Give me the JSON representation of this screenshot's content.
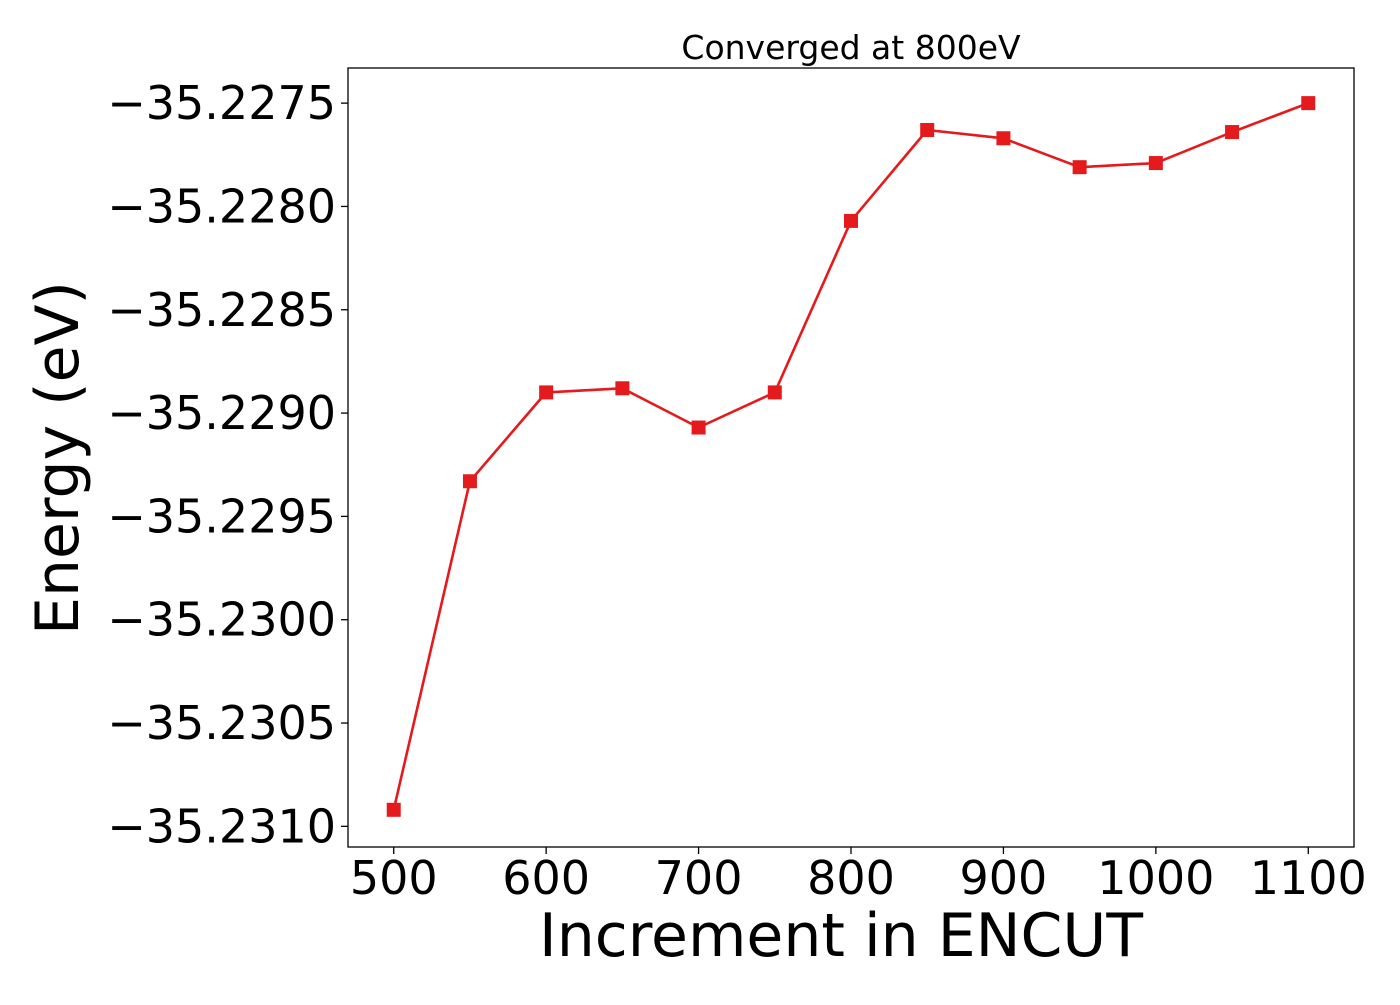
{
  "colors": {
    "series": "#e41a1c",
    "axis": "#000000",
    "background": "#ffffff"
  },
  "chart_data": {
    "type": "line",
    "title": "Converged at 800eV",
    "xlabel": "Increment in ENCUT",
    "ylabel": "Energy (eV)",
    "marker": "square",
    "grid": false,
    "x": [
      500,
      550,
      600,
      650,
      700,
      750,
      800,
      850,
      900,
      950,
      1000,
      1050,
      1100
    ],
    "series": [
      {
        "values": [
          -35.23092,
          -35.22933,
          -35.2289,
          -35.22888,
          -35.22907,
          -35.2289,
          -35.22807,
          -35.22763,
          -35.22767,
          -35.22781,
          -35.22779,
          -35.22764,
          -35.2275
        ]
      }
    ],
    "xlim": [
      470,
      1130
    ],
    "ylim": [
      -35.2311,
      -35.22733
    ],
    "xticks": [
      500,
      600,
      700,
      800,
      900,
      1000,
      1100
    ],
    "xtick_labels": [
      "500",
      "600",
      "700",
      "800",
      "900",
      "1000",
      "1100"
    ],
    "yticks": [
      -35.231,
      -35.2305,
      -35.23,
      -35.2295,
      -35.229,
      -35.2285,
      -35.228,
      -35.2275
    ],
    "ytick_labels": [
      "−35.2310",
      "−35.2305",
      "−35.2300",
      "−35.2295",
      "−35.2290",
      "−35.2285",
      "−35.2280",
      "−35.2275"
    ]
  }
}
